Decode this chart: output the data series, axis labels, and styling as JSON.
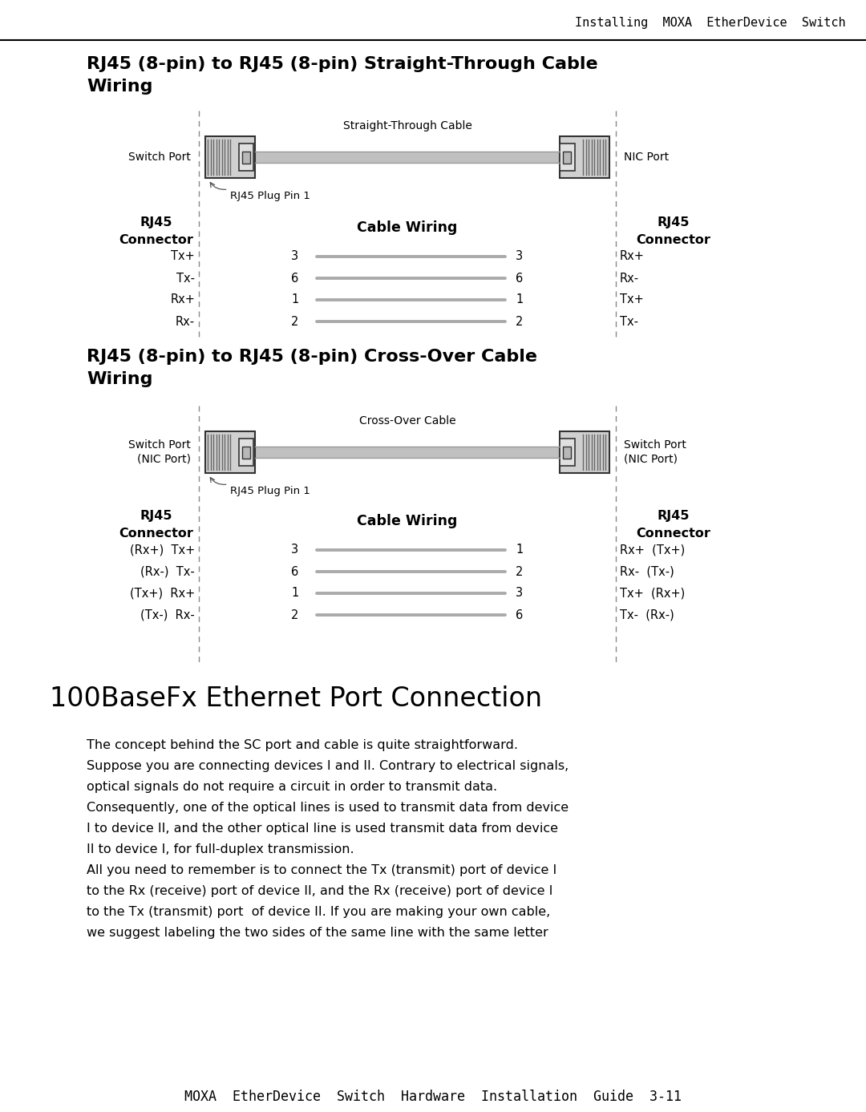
{
  "bg_color": "#ffffff",
  "header_text": "Installing  MOXA  EtherDevice  Switch",
  "footer_text": "MOXA  EtherDevice  Switch  Hardware  Installation  Guide  3-11",
  "section1_title_line1": "RJ45 (8-pin) to RJ45 (8-pin) Straight-Through Cable",
  "section1_title_line2": "Wiring",
  "section2_title_line1": "RJ45 (8-pin) to RJ45 (8-pin) Cross-Over Cable",
  "section2_title_line2": "Wiring",
  "section3_title": "100BaseFx Ethernet Port Connection",
  "section3_body_lines": [
    "The concept behind the SC port and cable is quite straightforward.",
    "Suppose you are connecting devices I and II. Contrary to electrical signals,",
    "optical signals do not require a circuit in order to transmit data.",
    "Consequently, one of the optical lines is used to transmit data from device",
    "I to device II, and the other optical line is used transmit data from device",
    "II to device I, for full-duplex transmission.",
    "All you need to remember is to connect the Tx (transmit) port of device I",
    "to the Rx (receive) port of device II, and the Rx (receive) port of device I",
    "to the Tx (transmit) port  of device II. If you are making your own cable,",
    "we suggest labeling the two sides of the same line with the same letter"
  ],
  "straight_cable_label": "Straight-Through Cable",
  "crossover_cable_label": "Cross-Over Cable",
  "rj45_plug_label": "RJ45 Plug Pin 1",
  "switch_port_label": "Switch Port",
  "nic_port_label": "NIC Port",
  "switch_nic_label": "Switch Port\n(NIC Port)",
  "rj45_connector_bold": "RJ45\nConnector",
  "cable_wiring_bold": "Cable Wiring",
  "straight_left_pins": [
    "Tx+",
    "Tx-",
    "Rx+",
    "Rx-"
  ],
  "straight_right_pins": [
    "Rx+",
    "Rx-",
    "Tx+",
    "Tx-"
  ],
  "straight_left_nums": [
    "3",
    "6",
    "1",
    "2"
  ],
  "straight_right_nums": [
    "3",
    "6",
    "1",
    "2"
  ],
  "cross_left_pins": [
    "(Rx+)  Tx+",
    "(Rx-)  Tx-",
    "(Tx+)  Rx+",
    "(Tx-)  Rx-"
  ],
  "cross_right_pins": [
    "Rx+  (Tx+)",
    "Rx-  (Tx-)",
    "Tx+  (Rx+)",
    "Tx-  (Rx-)"
  ],
  "cross_left_nums": [
    "3",
    "6",
    "1",
    "2"
  ],
  "cross_right_nums": [
    "1",
    "2",
    "3",
    "6"
  ],
  "dashed_color": "#888888",
  "line_gray": "#aaaaaa",
  "text_black": "#000000",
  "connector_body_color": "#d0d0d0",
  "connector_edge_color": "#333333",
  "cable_fill_color": "#c0c0c0",
  "stripe_color": "#666666"
}
